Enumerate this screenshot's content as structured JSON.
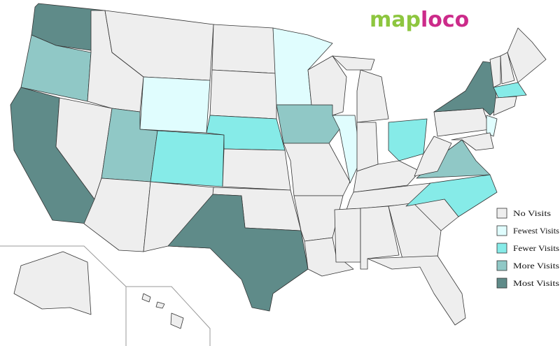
{
  "logo": {
    "parts": [
      {
        "text": "map",
        "color": "#8dc63f"
      },
      {
        "text": "loco",
        "color": "#cc2b8a"
      }
    ]
  },
  "legend": [
    {
      "label": "No Visits",
      "color": "#eeeeee"
    },
    {
      "label": "Fewest Visits",
      "color": "#e0fdfe"
    },
    {
      "label": "Fewer Visits",
      "color": "#86ebe8"
    },
    {
      "label": "More Visits",
      "color": "#90c8c6"
    },
    {
      "label": "Most Visits",
      "color": "#5f8b89"
    }
  ]
}
